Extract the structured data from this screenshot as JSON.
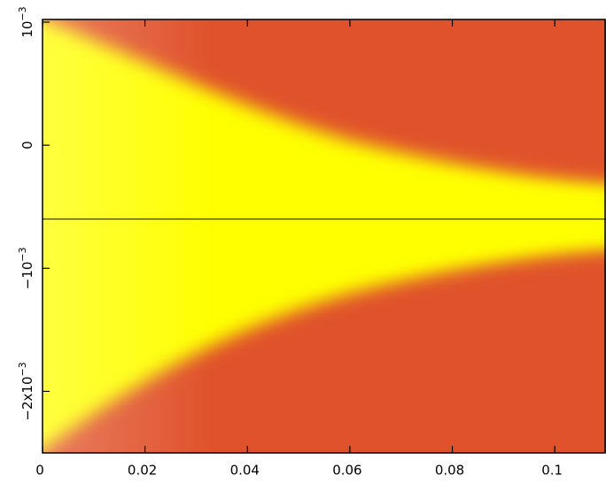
{
  "chart_data": {
    "type": "heatmap",
    "xlim": [
      0,
      0.11
    ],
    "xticks": [
      0,
      0.02,
      0.04,
      0.06,
      0.08,
      0.1
    ],
    "ylim": [
      -0.0025,
      0.001
    ],
    "yticks": [
      {
        "value": 0.001,
        "label": "10",
        "superscript": "−3"
      },
      0,
      {
        "value": -0.001,
        "label": "−10",
        "superscript": "−3"
      },
      {
        "value": -0.002,
        "label": "−2x10",
        "superscript": "−3"
      }
    ],
    "hline": -0.0006,
    "colors": [
      "#e0522b",
      "#ffff00"
    ]
  }
}
